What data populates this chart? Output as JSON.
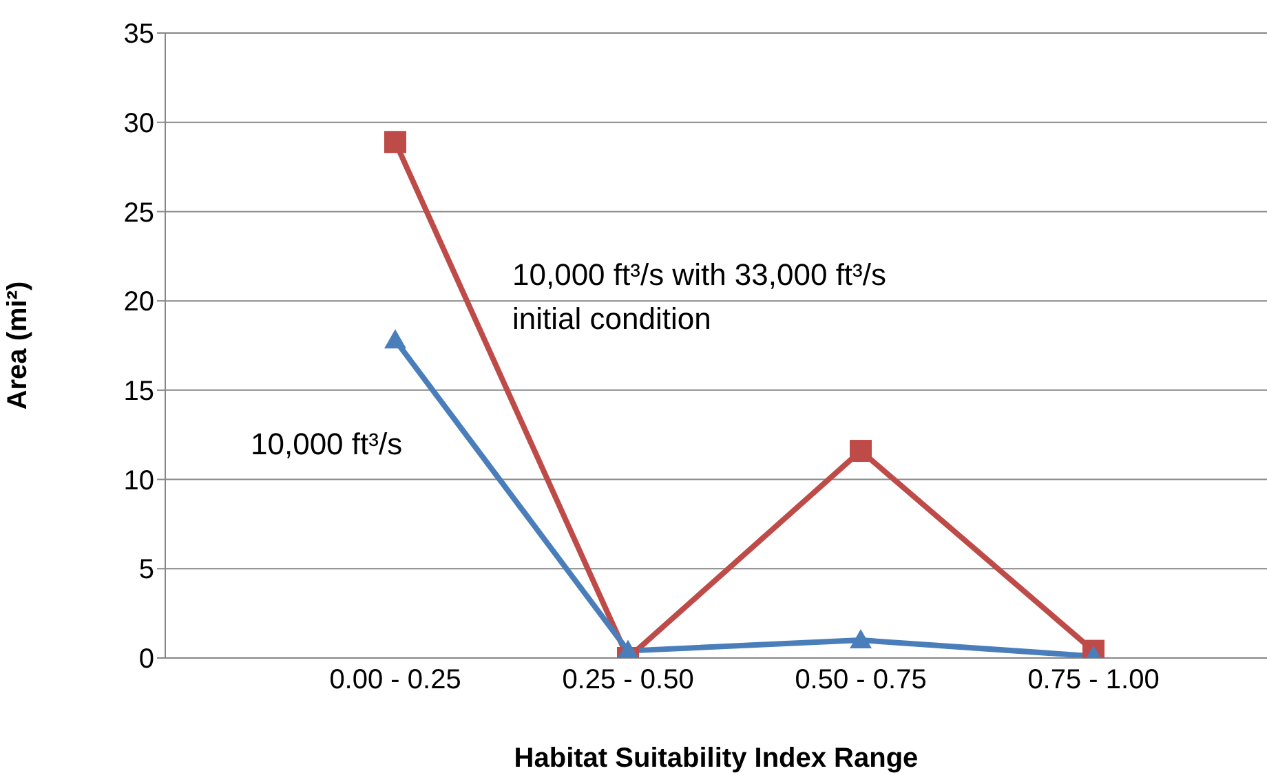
{
  "chart_data": {
    "type": "line",
    "xlabel": "Habitat Suitability Index Range",
    "ylabel": "Area (mi²)",
    "categories": [
      "0.00 - 0.25",
      "0.25 - 0.50",
      "0.50 - 0.75",
      "0.75 - 1.00"
    ],
    "series": [
      {
        "name": "10,000 ft³/s",
        "color": "#4a7ebb",
        "marker": "triangle",
        "values": [
          17.8,
          0.4,
          1.0,
          0.1
        ]
      },
      {
        "name": "10,000 ft³/s with 33,000 ft³/s initial condition",
        "color": "#be4b48",
        "marker": "square",
        "values": [
          28.9,
          0.0,
          11.6,
          0.4
        ]
      }
    ],
    "ylim": [
      0,
      35
    ],
    "yticks": [
      0,
      5,
      10,
      15,
      20,
      25,
      30,
      35
    ],
    "grid": "y",
    "legend": false
  }
}
